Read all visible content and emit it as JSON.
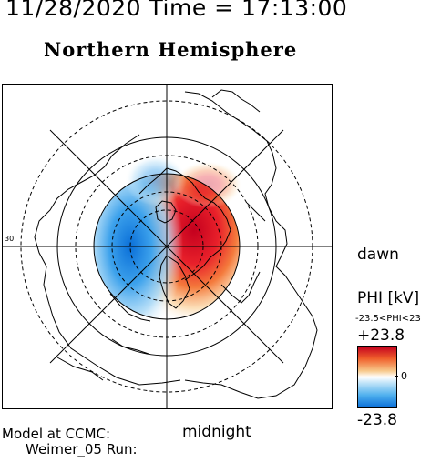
{
  "header": {
    "timestamp": "11/28/2020 Time = 17:13:00",
    "hemisphere_title": "Northern Hemisphere"
  },
  "map": {
    "orientation_labels": {
      "right": "dawn",
      "bottom": "midnight"
    },
    "lat_label_left": "30"
  },
  "colorbar": {
    "title": "PHI [kV]",
    "range_text": "-23.5<PHI<23",
    "max_label": "+23.8",
    "min_label": "-23.8",
    "zero_label": "0",
    "max_color": "#c4001e",
    "mid_color": "#ffffff",
    "min_color": "#0a6fd8"
  },
  "footer": {
    "model_label": "Model at CCMC:",
    "run_label": "Weimer_05 Run:"
  }
}
